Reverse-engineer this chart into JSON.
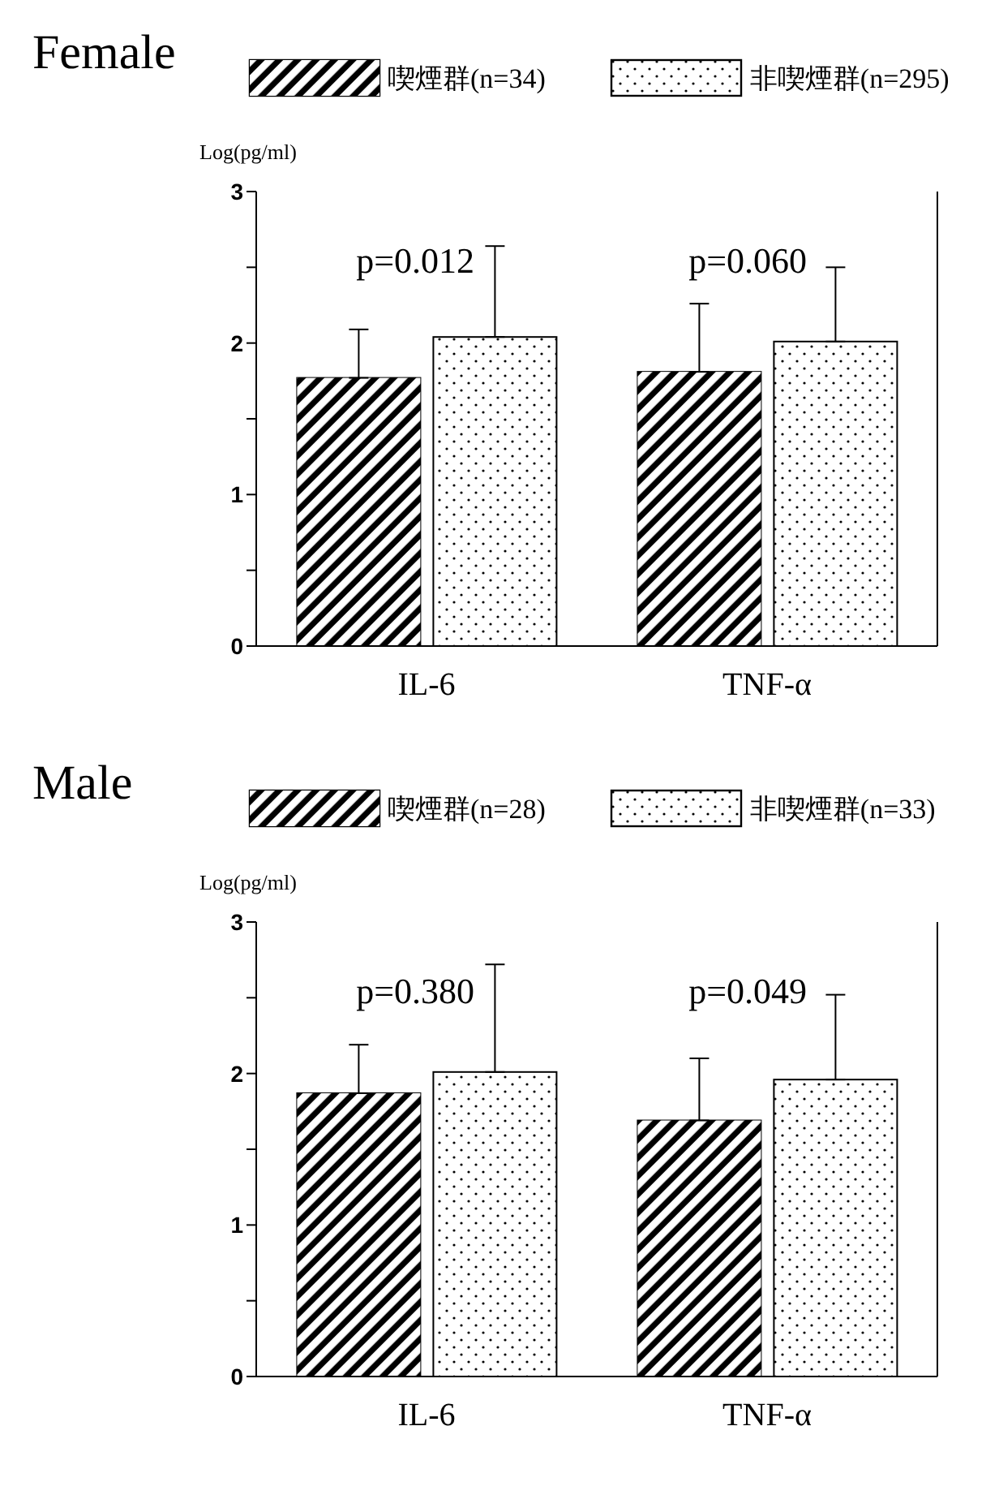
{
  "chart_data": [
    {
      "type": "bar",
      "title": "Female",
      "ylabel": "Log(pg/ml)",
      "categories": [
        "IL-6",
        "TNF-α"
      ],
      "series": [
        {
          "name": "喫煙群(n=34)",
          "color": "#000000",
          "values": [
            1.77,
            1.81
          ],
          "errors": [
            [
              1.77,
              2.09
            ],
            [
              1.81,
              2.26
            ]
          ]
        },
        {
          "name": "非喫煙群(n=295)",
          "color": "#ffffff",
          "values": [
            2.04,
            2.01
          ],
          "errors": [
            [
              2.04,
              2.64
            ],
            [
              2.01,
              2.5
            ]
          ]
        }
      ],
      "ylim": [
        0,
        3
      ],
      "yticks": [
        0,
        {
          "value": 0.5,
          "label": null
        },
        1,
        {
          "value": 1.5,
          "label": null
        },
        2,
        {
          "value": 2.5,
          "label": null
        },
        3
      ],
      "annotations": [
        "p=0.012",
        "p=0.060"
      ],
      "legend": "top",
      "grid": false
    },
    {
      "type": "bar",
      "title": "Male",
      "ylabel": "Log(pg/ml)",
      "categories": [
        "IL-6",
        "TNF-α"
      ],
      "series": [
        {
          "name": "喫煙群(n=28)",
          "color": "#000000",
          "values": [
            1.87,
            1.69
          ],
          "errors": [
            [
              1.87,
              2.19
            ],
            [
              1.69,
              2.1
            ]
          ]
        },
        {
          "name": "非喫煙群(n=33)",
          "color": "#ffffff",
          "values": [
            2.01,
            1.96
          ],
          "errors": [
            [
              2.01,
              2.72
            ],
            [
              1.96,
              2.52
            ]
          ]
        }
      ],
      "ylim": [
        0,
        3
      ],
      "yticks": [
        0,
        {
          "value": 0.5,
          "label": null
        },
        1,
        {
          "value": 1.5,
          "label": null
        },
        2,
        {
          "value": 2.5,
          "label": null
        },
        3
      ],
      "annotations": [
        "p=0.380",
        "p=0.049"
      ],
      "legend": "top",
      "grid": false
    }
  ]
}
